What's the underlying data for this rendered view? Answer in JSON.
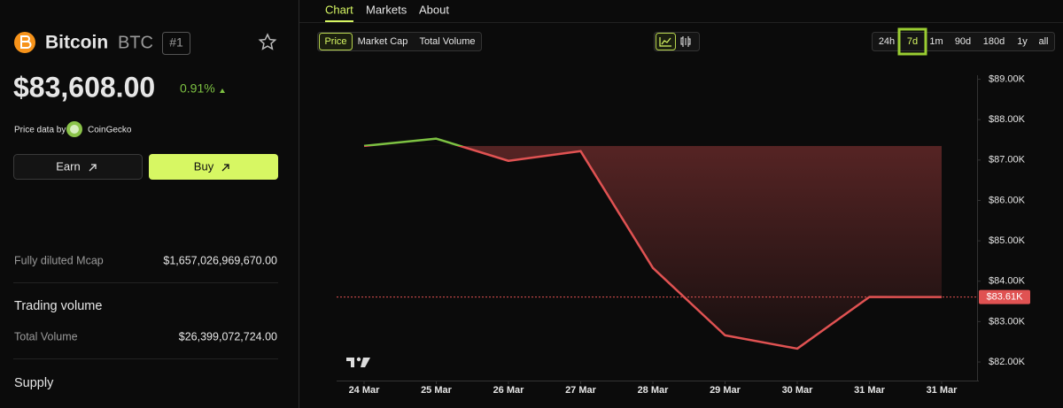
{
  "coin": {
    "name": "Bitcoin",
    "symbol": "BTC",
    "rank": "#1",
    "price": "$83,608.00",
    "change": "0.91%"
  },
  "source": {
    "prefix": "Price data by",
    "name": "CoinGecko"
  },
  "actions": [
    "Earn",
    "Buy"
  ],
  "stats": {
    "fdv_label": "Fully diluted Mcap",
    "fdv_value": "$1,657,026,969,670.00",
    "volume_heading": "Trading volume",
    "volume_label": "Total Volume",
    "volume_value": "$26,399,072,724.00",
    "supply_heading": "Supply"
  },
  "tabs": [
    "Chart",
    "Markets",
    "About"
  ],
  "metrics": [
    "Price",
    "Market Cap",
    "Total Volume"
  ],
  "ranges": [
    "24h",
    "7d",
    "1m",
    "90d",
    "180d",
    "1y",
    "all"
  ],
  "chart_data": {
    "type": "line",
    "categories": [
      "24 Mar",
      "25 Mar",
      "26 Mar",
      "27 Mar",
      "28 Mar",
      "29 Mar",
      "30 Mar",
      "31 Mar",
      "31 Mar"
    ],
    "series": [
      {
        "name": "Price",
        "color": "#e05252",
        "up_color": "#7dc142",
        "values": [
          87350,
          87530,
          86980,
          87220,
          84330,
          82660,
          82330,
          83610,
          83608
        ]
      }
    ],
    "current": {
      "value": 83608,
      "label": "$83.61K"
    },
    "ylim": [
      81540,
      89100
    ],
    "yticks": [
      {
        "value": 82000,
        "label": "$82.00K"
      },
      {
        "value": 83000,
        "label": "$83.00K"
      },
      {
        "value": 84000,
        "label": "$84.00K"
      },
      {
        "value": 85000,
        "label": "$85.00K"
      },
      {
        "value": 86000,
        "label": "$86.00K"
      },
      {
        "value": 87000,
        "label": "$87.00K"
      },
      {
        "value": 88000,
        "label": "$88.00K"
      },
      {
        "value": 89000,
        "label": "$89.00K"
      }
    ]
  }
}
